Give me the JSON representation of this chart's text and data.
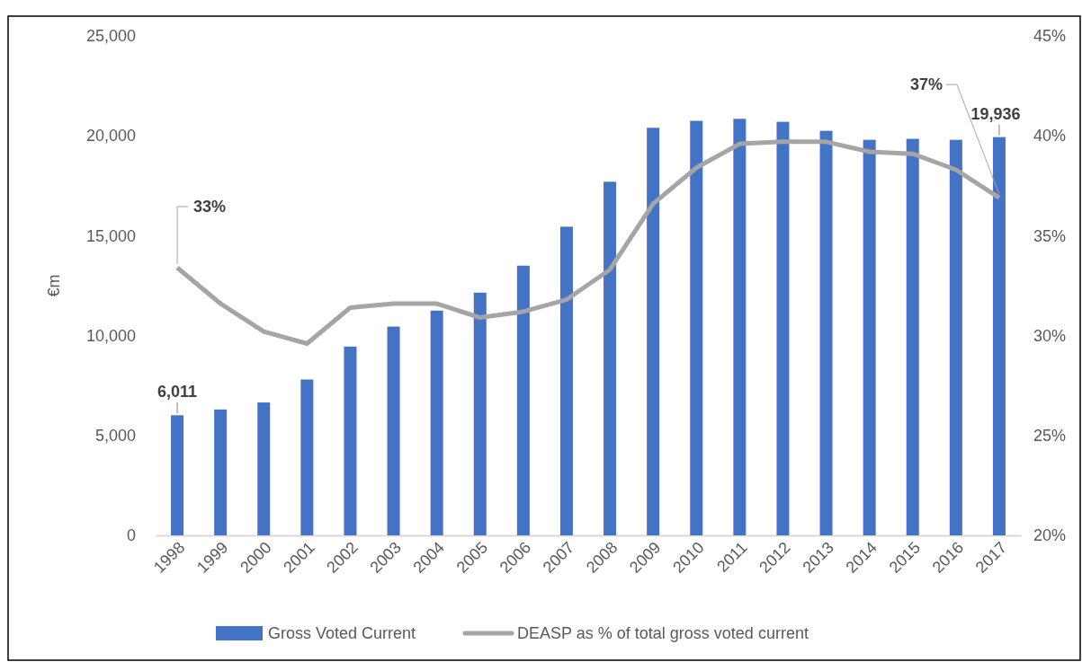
{
  "chart_data": {
    "type": "bar",
    "ylabel": "€m",
    "categories": [
      "1998",
      "1999",
      "2000",
      "2001",
      "2002",
      "2003",
      "2004",
      "2005",
      "2006",
      "2007",
      "2008",
      "2009",
      "2010",
      "2011",
      "2012",
      "2013",
      "2014",
      "2015",
      "2016",
      "2017"
    ],
    "series": [
      {
        "name": "Gross Voted Current",
        "color": "#4472c4",
        "values": [
          6011,
          6300,
          6650,
          7800,
          9450,
          10450,
          11250,
          12150,
          13500,
          15450,
          17700,
          20400,
          20750,
          20850,
          20700,
          20250,
          19800,
          19850,
          19800,
          19936
        ],
        "value_labels": [
          "6,011",
          null,
          null,
          null,
          null,
          null,
          null,
          null,
          null,
          null,
          null,
          null,
          null,
          null,
          null,
          null,
          null,
          null,
          null,
          "19,936"
        ]
      },
      {
        "name": "DEASP as % of total gross voted current",
        "type": "line",
        "axis": "y2",
        "color": "#a5a5a5",
        "values": [
          33.4,
          31.6,
          30.2,
          29.6,
          31.4,
          31.6,
          31.6,
          30.9,
          31.2,
          31.8,
          33.3,
          36.6,
          38.4,
          39.6,
          39.7,
          39.7,
          39.2,
          39.1,
          38.3,
          36.9
        ],
        "value_labels": [
          "33%",
          null,
          null,
          null,
          null,
          null,
          null,
          null,
          null,
          null,
          null,
          null,
          null,
          null,
          null,
          null,
          null,
          null,
          null,
          "37%"
        ]
      }
    ],
    "ylim": [
      0,
      25000
    ],
    "yticks": [
      0,
      {
        "value": 5000,
        "label": "5,000"
      },
      {
        "value": 10000,
        "label": "10,000"
      },
      {
        "value": 15000,
        "label": "15,000"
      },
      {
        "value": 20000,
        "label": "20,000"
      },
      {
        "value": 25000,
        "label": "25,000"
      }
    ],
    "y2lim": [
      20,
      45
    ],
    "y2ticks": [
      {
        "value": 20,
        "label": "20%"
      },
      {
        "value": 25,
        "label": "25%"
      },
      {
        "value": 30,
        "label": "30%"
      },
      {
        "value": 35,
        "label": "35%"
      },
      {
        "value": 40,
        "label": "40%"
      },
      {
        "value": 45,
        "label": "45%"
      }
    ],
    "grid": false,
    "legend": "bottom",
    "marker": "none",
    "line_style": "solid"
  }
}
